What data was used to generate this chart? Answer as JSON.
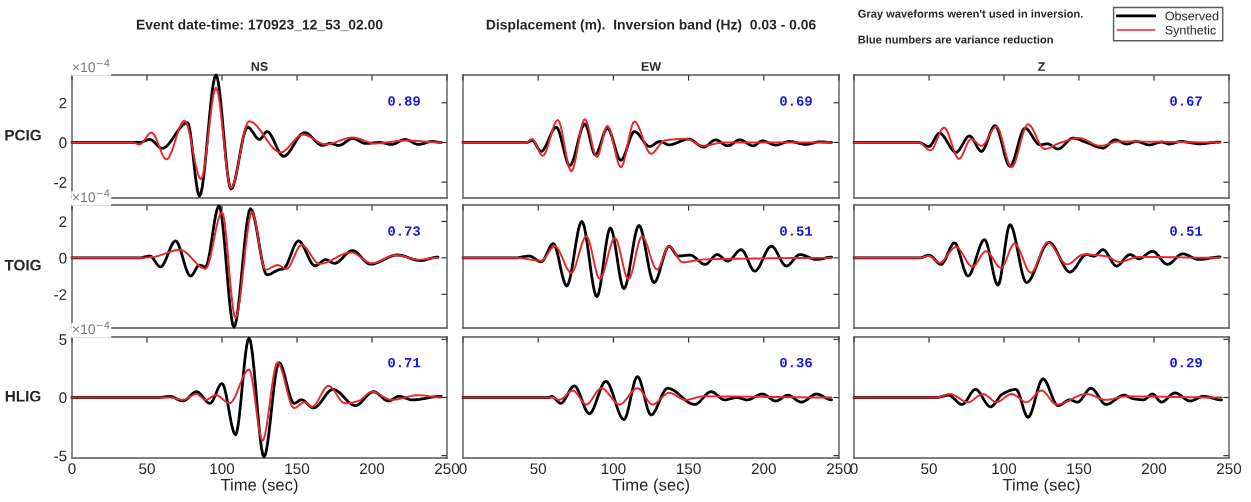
{
  "chart_data": [
    {
      "type": "line",
      "title": "NS",
      "subtitle": "Event date-time: 170923_12_53_02.00",
      "ylabel": "PCIG",
      "xlim": [
        0,
        250
      ],
      "xticks": [
        0,
        50,
        100,
        150,
        200,
        250
      ],
      "ylim": [
        -2.8,
        3.4
      ],
      "yticks": [
        -2,
        0,
        2
      ],
      "tick_labels": "y",
      "annotations": [
        "0.89",
        "×10$^{−4}$"
      ],
      "series": [
        {
          "color": "#000000",
          "x": [
            0,
            45,
            52,
            60,
            77,
            85,
            96,
            106,
            117,
            125,
            130,
            141,
            155,
            167,
            172,
            178,
            187,
            196,
            205,
            213,
            222,
            231,
            240,
            246
          ],
          "values": [
            0,
            0,
            0.15,
            -0.3,
            1.0,
            -2.7,
            3.4,
            -2.35,
            0.77,
            0.15,
            0.55,
            -0.7,
            0.5,
            -0.15,
            -0.05,
            -0.15,
            0.2,
            -0.05,
            0,
            -0.1,
            0.15,
            -0.1,
            0.05,
            0
          ]
        },
        {
          "color": "#e8282e",
          "x": [
            0,
            40,
            45,
            53,
            63,
            75,
            86,
            96,
            106,
            118,
            139,
            154,
            169,
            187,
            202,
            222,
            246
          ],
          "values": [
            0,
            0,
            -0.1,
            0.5,
            -0.85,
            1.1,
            -1.85,
            2.75,
            -2.3,
            1.07,
            -0.5,
            0.4,
            -0.1,
            0.25,
            -0.05,
            0.1,
            0
          ]
        }
      ]
    },
    {
      "type": "line",
      "title": "EW",
      "subtitle": "Displacement (m).  Inversion band (Hz)  0.03 - 0.06",
      "xlim": [
        0,
        250
      ],
      "xticks": [
        0,
        50,
        100,
        150,
        200,
        250
      ],
      "ylim": [
        -2.8,
        3.4
      ],
      "yticks": [
        -2,
        0,
        2
      ],
      "tick_labels": false,
      "annotations": [
        "0.69"
      ],
      "series": [
        {
          "color": "#000000",
          "x": [
            0,
            42,
            46,
            52,
            62,
            71,
            81,
            88,
            96,
            105,
            114,
            124,
            131,
            137,
            150,
            160,
            168,
            176,
            184,
            193,
            199,
            208,
            217,
            228,
            237,
            245
          ],
          "values": [
            0,
            0,
            0.1,
            -0.45,
            0.77,
            -1.17,
            0.93,
            -0.62,
            0.72,
            -0.9,
            0.55,
            -0.2,
            0.05,
            -0.12,
            0.17,
            -0.23,
            0.13,
            -0.17,
            0.13,
            -0.17,
            0.08,
            -0.13,
            0.05,
            -0.1,
            0.03,
            0
          ]
        },
        {
          "color": "#e8282e",
          "x": [
            0,
            42,
            46,
            53,
            63,
            72,
            81,
            89,
            96,
            105,
            114,
            125,
            134,
            148,
            160,
            173,
            245
          ],
          "values": [
            0,
            0,
            0.17,
            -0.67,
            1.13,
            -1.45,
            1.17,
            -0.73,
            0.83,
            -1.25,
            1.05,
            -0.57,
            0.1,
            0.18,
            -0.17,
            0,
            0
          ]
        }
      ]
    },
    {
      "type": "line",
      "title": "Z",
      "xlim": [
        0,
        250
      ],
      "xticks": [
        0,
        50,
        100,
        150,
        200,
        250
      ],
      "ylim": [
        -2.8,
        3.4
      ],
      "yticks": [
        -2,
        0,
        2
      ],
      "tick_labels": false,
      "legend": "top right",
      "annotations": [
        "0.67",
        "Gray waveforms weren't used in inversion.",
        "Blue numbers are variance reduction"
      ],
      "series": [
        {
          "name": "Observed",
          "color": "#000000",
          "x": [
            0,
            43,
            50,
            57,
            68,
            77,
            85,
            94,
            104,
            114,
            124,
            129,
            136,
            146,
            155,
            166,
            174,
            182,
            188,
            197,
            205,
            210,
            218,
            230,
            244
          ],
          "values": [
            0,
            0,
            -0.2,
            0.47,
            -0.5,
            0.33,
            -0.45,
            0.85,
            -1.2,
            0.72,
            -0.12,
            -0.07,
            -0.33,
            0.22,
            0,
            -0.28,
            0.13,
            -0.08,
            0.05,
            -0.12,
            0.02,
            -0.08,
            0.05,
            -0.07,
            0.02
          ]
        },
        {
          "name": "Synthetic",
          "color": "#e8282e",
          "x": [
            0,
            43,
            51,
            60,
            70,
            78,
            85,
            95,
            105,
            116,
            127,
            137,
            150,
            164,
            177,
            244
          ],
          "values": [
            0,
            0,
            -0.4,
            0.75,
            -0.83,
            0.17,
            -0.17,
            0.8,
            -1.25,
            0.92,
            -0.33,
            -0.03,
            0.22,
            -0.17,
            0.05,
            0
          ]
        }
      ]
    },
    {
      "type": "line",
      "ylabel": "TOIG",
      "xlim": [
        0,
        250
      ],
      "xticks": [
        0,
        50,
        100,
        150,
        200,
        250
      ],
      "ylim": [
        -3.85,
        2.9
      ],
      "yticks": [
        -2,
        0,
        2
      ],
      "tick_labels": "y",
      "annotations": [
        "0.73",
        "×10$^{−4}$"
      ],
      "series": [
        {
          "color": "#000000",
          "x": [
            0,
            45,
            52,
            59,
            69,
            79,
            85,
            89,
            98,
            108,
            119,
            130,
            138,
            141,
            151,
            162,
            169,
            175,
            187,
            199,
            217,
            232,
            244
          ],
          "values": [
            0,
            0,
            0.1,
            -0.5,
            0.93,
            -1.0,
            -0.4,
            -0.5,
            2.85,
            -3.8,
            2.7,
            -0.93,
            -0.65,
            -0.6,
            0.93,
            -0.44,
            -0.1,
            -0.3,
            0.4,
            -0.35,
            0.16,
            -0.15,
            0.04
          ]
        },
        {
          "color": "#e8282e",
          "x": [
            0,
            45,
            54,
            72,
            89,
            100,
            109,
            120,
            129,
            137,
            143,
            153,
            165,
            186,
            200,
            216,
            231,
            244
          ],
          "values": [
            0,
            0,
            0.05,
            0.44,
            -0.6,
            2.5,
            -3.3,
            2.5,
            -0.65,
            -0.4,
            -0.6,
            0.7,
            -0.33,
            0.3,
            -0.3,
            0.15,
            -0.1,
            0
          ]
        }
      ]
    },
    {
      "type": "line",
      "xlim": [
        0,
        250
      ],
      "xticks": [
        0,
        50,
        100,
        150,
        200,
        250
      ],
      "ylim": [
        -3.85,
        2.9
      ],
      "yticks": [
        -2,
        0,
        2
      ],
      "tick_labels": false,
      "annotations": [
        "0.51"
      ],
      "series": [
        {
          "color": "#000000",
          "x": [
            0,
            35,
            44,
            52,
            60,
            69,
            79,
            89,
            98,
            107,
            117,
            127,
            137,
            143,
            151,
            161,
            169,
            176,
            185,
            194,
            205,
            215,
            224,
            235,
            245
          ],
          "values": [
            0,
            0,
            0.1,
            -0.22,
            0.78,
            -1.55,
            2.0,
            -2.13,
            1.64,
            -1.69,
            1.78,
            -1.36,
            0.64,
            0.1,
            0.15,
            -0.36,
            0.18,
            -0.18,
            0.45,
            -0.73,
            0.64,
            -0.45,
            0.18,
            -0.09,
            0.04
          ]
        },
        {
          "color": "#e8282e",
          "x": [
            0,
            35,
            52,
            61,
            72,
            82,
            91,
            101,
            110,
            119,
            129,
            137,
            146,
            160,
            182,
            245
          ],
          "values": [
            0,
            0,
            -0.16,
            0.64,
            -0.82,
            1.18,
            -1.15,
            1.09,
            -1.18,
            1.18,
            -0.64,
            0.64,
            -0.24,
            -0.09,
            -0.05,
            0
          ]
        }
      ]
    },
    {
      "type": "line",
      "xlim": [
        0,
        250
      ],
      "xticks": [
        0,
        50,
        100,
        150,
        200,
        250
      ],
      "ylim": [
        -3.85,
        2.9
      ],
      "yticks": [
        -2,
        0,
        2
      ],
      "tick_labels": false,
      "annotations": [
        "0.51"
      ],
      "series": [
        {
          "color": "#000000",
          "x": [
            0,
            44,
            50,
            58,
            67,
            76,
            87,
            96,
            104,
            115,
            130,
            144,
            155,
            160,
            166,
            175,
            184,
            190,
            199,
            209,
            219,
            230,
            244
          ],
          "values": [
            0,
            0,
            0.15,
            -0.36,
            0.82,
            -1.0,
            1.0,
            -1.5,
            1.82,
            -1.36,
            0.85,
            -0.78,
            0.18,
            0.09,
            0.45,
            -0.45,
            0.18,
            -0.05,
            0.36,
            -0.36,
            0.22,
            -0.09,
            0.05
          ]
        },
        {
          "color": "#e8282e",
          "x": [
            0,
            44,
            50,
            57,
            68,
            79,
            88,
            98,
            107,
            118,
            129,
            142,
            153,
            168,
            177,
            190,
            244
          ],
          "values": [
            0,
            0,
            0.1,
            -0.27,
            0.6,
            -0.49,
            0.36,
            -0.55,
            0.78,
            -0.82,
            0.85,
            -0.36,
            0.18,
            0.09,
            -0.22,
            0.05,
            0
          ]
        }
      ]
    },
    {
      "type": "line",
      "ylabel": "HLIG",
      "xlabel": "Time (sec)",
      "xlim": [
        0,
        250
      ],
      "xticks": [
        0,
        50,
        100,
        150,
        200,
        250
      ],
      "ylim": [
        -5.2,
        5.2
      ],
      "yticks": [
        -5,
        0,
        5
      ],
      "annotations": [
        "0.71",
        "×10$^{−4}$"
      ],
      "series": [
        {
          "color": "#000000",
          "x": [
            0,
            58,
            65,
            74,
            83,
            92,
            100,
            109,
            118,
            128,
            138,
            148,
            153,
            161,
            174,
            189,
            201,
            211,
            218,
            227,
            246
          ],
          "values": [
            0,
            0,
            0.1,
            -0.3,
            0.5,
            -0.5,
            1.2,
            -3.2,
            5.1,
            -5.1,
            3.0,
            -0.5,
            -0.2,
            -0.9,
            0.7,
            -0.7,
            0.5,
            -0.3,
            0.1,
            -0.2,
            0.1
          ]
        },
        {
          "color": "#e8282e",
          "x": [
            0,
            65,
            74,
            83,
            89,
            96,
            105,
            118,
            127,
            137,
            148,
            155,
            160,
            171,
            182,
            191,
            200,
            213,
            231,
            246
          ],
          "values": [
            0,
            0,
            -0.2,
            0.3,
            -0.2,
            0.2,
            -0.5,
            2.4,
            -3.7,
            3.0,
            -0.9,
            -0.4,
            -0.8,
            1.0,
            -0.5,
            -0.3,
            0.5,
            -0.2,
            0.2,
            0
          ]
        }
      ]
    },
    {
      "type": "line",
      "xlabel": "Time (sec)",
      "xlim": [
        0,
        250
      ],
      "xticks": [
        0,
        50,
        100,
        150,
        200,
        250
      ],
      "ylim": [
        -5.2,
        5.2
      ],
      "yticks": [
        -5,
        0,
        5
      ],
      "tick_labels": "x",
      "annotations": [
        "0.36"
      ],
      "series": [
        {
          "color": "#000000",
          "x": [
            0,
            57,
            59,
            65,
            74,
            84,
            95,
            107,
            116,
            125,
            136,
            154,
            165,
            174,
            182,
            189,
            199,
            208,
            216,
            225,
            235,
            245
          ],
          "values": [
            0,
            0,
            0.1,
            -0.5,
            1.0,
            -1.4,
            1.4,
            -1.9,
            1.8,
            -1.5,
            0.8,
            -0.6,
            0.5,
            -0.2,
            0,
            -0.2,
            0.3,
            -0.3,
            0.2,
            -0.4,
            0.3,
            -0.2
          ]
        },
        {
          "color": "#e8282e",
          "x": [
            0,
            59,
            64,
            73,
            82,
            92,
            104,
            116,
            126,
            137,
            148,
            160,
            245
          ],
          "values": [
            0,
            0,
            -0.2,
            0.6,
            -0.6,
            0.8,
            -0.6,
            0.8,
            -0.6,
            0.4,
            -0.2,
            0.1,
            0
          ]
        }
      ]
    },
    {
      "type": "line",
      "xlabel": "Time (sec)",
      "xlim": [
        0,
        250
      ],
      "xticks": [
        0,
        50,
        100,
        150,
        200,
        250
      ],
      "ylim": [
        -5.2,
        5.2
      ],
      "yticks": [
        -5,
        0,
        5
      ],
      "tick_labels": "x",
      "annotations": [
        "0.29"
      ],
      "series": [
        {
          "color": "#000000",
          "x": [
            0,
            55,
            63,
            72,
            81,
            91,
            99,
            108,
            116,
            126,
            136,
            144,
            149,
            158,
            168,
            180,
            186,
            193,
            199,
            205,
            214,
            224,
            233,
            245
          ],
          "values": [
            0,
            0,
            0.2,
            -0.6,
            0.7,
            -0.8,
            0.3,
            0.7,
            -1.7,
            1.6,
            -0.7,
            -0.2,
            -0.4,
            0.8,
            -0.6,
            0.2,
            -0.1,
            -0.2,
            0.3,
            -0.4,
            0.4,
            -0.3,
            0.1,
            -0.2
          ]
        },
        {
          "color": "#e8282e",
          "x": [
            0,
            55,
            64,
            76,
            86,
            95,
            105,
            115,
            125,
            135,
            155,
            168,
            182,
            245
          ],
          "values": [
            0,
            0,
            0.3,
            -0.4,
            0.3,
            -0.4,
            0.3,
            -0.4,
            0.6,
            -0.6,
            0.3,
            -0.2,
            0.1,
            0
          ]
        }
      ]
    }
  ]
}
